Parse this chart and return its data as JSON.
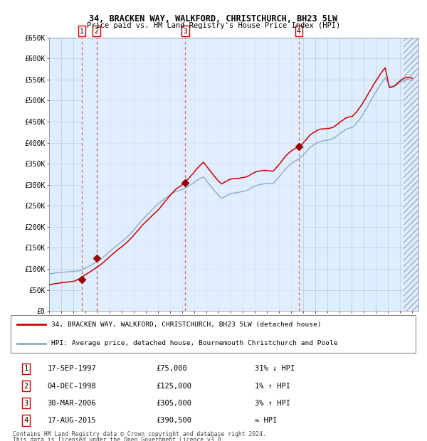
{
  "title1": "34, BRACKEN WAY, WALKFORD, CHRISTCHURCH, BH23 5LW",
  "title2": "Price paid vs. HM Land Registry's House Price Index (HPI)",
  "ylim": [
    0,
    650000
  ],
  "yticks": [
    0,
    50000,
    100000,
    150000,
    200000,
    250000,
    300000,
    350000,
    400000,
    450000,
    500000,
    550000,
    600000,
    650000
  ],
  "ytick_labels": [
    "£0",
    "£50K",
    "£100K",
    "£150K",
    "£200K",
    "£250K",
    "£300K",
    "£350K",
    "£400K",
    "£450K",
    "£500K",
    "£550K",
    "£600K",
    "£650K"
  ],
  "xlim_start": 1995.0,
  "xlim_end": 2025.5,
  "xticks": [
    1995,
    1996,
    1997,
    1998,
    1999,
    2000,
    2001,
    2002,
    2003,
    2004,
    2005,
    2006,
    2007,
    2008,
    2009,
    2010,
    2011,
    2012,
    2013,
    2014,
    2015,
    2016,
    2017,
    2018,
    2019,
    2020,
    2021,
    2022,
    2023,
    2024,
    2025
  ],
  "sales": [
    {
      "num": 1,
      "date": "17-SEP-1997",
      "year": 1997.71,
      "price": 75000,
      "hpi_rel": "31% ↓ HPI"
    },
    {
      "num": 2,
      "date": "04-DEC-1998",
      "year": 1998.92,
      "price": 125000,
      "hpi_rel": "1% ↑ HPI"
    },
    {
      "num": 3,
      "date": "30-MAR-2006",
      "year": 2006.25,
      "price": 305000,
      "hpi_rel": "3% ↑ HPI"
    },
    {
      "num": 4,
      "date": "17-AUG-2015",
      "year": 2015.62,
      "price": 390500,
      "hpi_rel": "≈ HPI"
    }
  ],
  "legend_line1": "34, BRACKEN WAY, WALKFORD, CHRISTCHURCH, BH23 5LW (detached house)",
  "legend_line2": "HPI: Average price, detached house, Bournemouth Christchurch and Poole",
  "footer1": "Contains HM Land Registry data © Crown copyright and database right 2024.",
  "footer2": "This data is licensed under the Open Government Licence v3.0.",
  "property_line_color": "#cc0000",
  "hpi_line_color": "#88aacc",
  "sale_marker_color": "#990000",
  "vline_color": "#dd4444",
  "bg_color": "#ddeeff",
  "grid_color": "#c0c8d8"
}
